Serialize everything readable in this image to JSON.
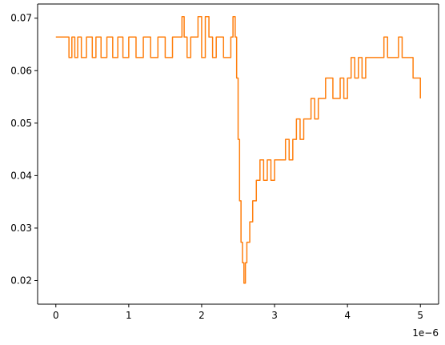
{
  "chart_data": {
    "type": "line",
    "title": "",
    "xlabel": "",
    "ylabel": "",
    "x_offset_text": "1e−6",
    "x_scale": 1e-06,
    "xlim": [
      -2.5e-07,
      5.25e-06
    ],
    "ylim": [
      0.0155,
      0.0727
    ],
    "x_ticks": [
      0,
      1e-06,
      2e-06,
      3e-06,
      4e-06,
      5e-06
    ],
    "x_tick_labels": [
      "0",
      "1",
      "2",
      "3",
      "4",
      "5"
    ],
    "y_ticks": [
      0.02,
      0.03,
      0.04,
      0.05,
      0.06,
      0.07
    ],
    "y_tick_labels": [
      "0.02",
      "0.03",
      "0.04",
      "0.05",
      "0.06",
      "0.07"
    ],
    "grid": false,
    "series": [
      {
        "color": "#ff7f0e",
        "x": [
          0,
          1.5e-07,
          1.8e-07,
          2.2e-07,
          2.6e-07,
          3e-07,
          3.5e-07,
          4.2e-07,
          5e-07,
          5.5e-07,
          6.2e-07,
          7e-07,
          7.8e-07,
          8.5e-07,
          9.2e-07,
          1e-06,
          1.1e-06,
          1.2e-06,
          1.3e-06,
          1.4e-06,
          1.5e-06,
          1.6e-06,
          1.7e-06,
          1.73e-06,
          1.76e-06,
          1.8e-06,
          1.85e-06,
          1.95e-06,
          2e-06,
          2.05e-06,
          2.1e-06,
          2.15e-06,
          2.2e-06,
          2.3e-06,
          2.4e-06,
          2.43e-06,
          2.46e-06,
          2.48e-06,
          2.5e-06,
          2.52e-06,
          2.54e-06,
          2.56e-06,
          2.58e-06,
          2.6e-06,
          2.62e-06,
          2.66e-06,
          2.7e-06,
          2.75e-06,
          2.8e-06,
          2.85e-06,
          2.9e-06,
          2.95e-06,
          3e-06,
          3.05e-06,
          3.1e-06,
          3.15e-06,
          3.2e-06,
          3.25e-06,
          3.3e-06,
          3.35e-06,
          3.4e-06,
          3.45e-06,
          3.5e-06,
          3.55e-06,
          3.6e-06,
          3.65e-06,
          3.7e-06,
          3.75e-06,
          3.8e-06,
          3.85e-06,
          3.9e-06,
          3.95e-06,
          4e-06,
          4.05e-06,
          4.1e-06,
          4.15e-06,
          4.2e-06,
          4.25e-06,
          4.3e-06,
          4.35e-06,
          4.4e-06,
          4.45e-06,
          4.5e-06,
          4.55e-06,
          4.6e-06,
          4.65e-06,
          4.7e-06,
          4.75e-06,
          4.8e-06,
          4.85e-06,
          4.9e-06,
          4.95e-06,
          5e-06
        ],
        "y": [
          0.0664,
          0.0664,
          0.0625,
          0.0664,
          0.0625,
          0.0664,
          0.0625,
          0.0664,
          0.0625,
          0.0664,
          0.0625,
          0.0664,
          0.0625,
          0.0664,
          0.0625,
          0.0664,
          0.0625,
          0.0664,
          0.0625,
          0.0664,
          0.0625,
          0.0664,
          0.0664,
          0.0703,
          0.0664,
          0.0625,
          0.0664,
          0.0703,
          0.0625,
          0.0703,
          0.0664,
          0.0625,
          0.0664,
          0.0625,
          0.0664,
          0.0703,
          0.0664,
          0.0586,
          0.0469,
          0.0352,
          0.0273,
          0.0234,
          0.0195,
          0.0234,
          0.0273,
          0.0312,
          0.0352,
          0.0391,
          0.043,
          0.0391,
          0.043,
          0.0391,
          0.043,
          0.043,
          0.043,
          0.0469,
          0.043,
          0.0469,
          0.0508,
          0.0469,
          0.0508,
          0.0508,
          0.0547,
          0.0508,
          0.0547,
          0.0547,
          0.0586,
          0.0586,
          0.0547,
          0.0547,
          0.0586,
          0.0547,
          0.0586,
          0.0625,
          0.0586,
          0.0625,
          0.0586,
          0.0625,
          0.0625,
          0.0625,
          0.0625,
          0.0625,
          0.0664,
          0.0625,
          0.0625,
          0.0625,
          0.0664,
          0.0625,
          0.0625,
          0.0625,
          0.0586,
          0.0586,
          0.0547
        ]
      }
    ]
  }
}
